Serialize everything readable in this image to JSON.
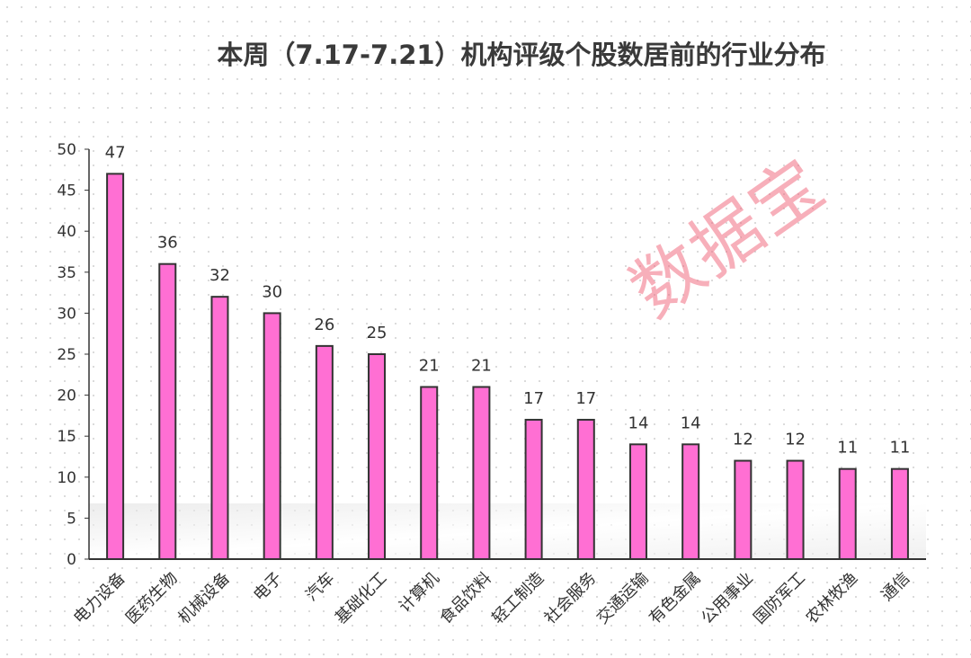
{
  "chart_data": {
    "type": "bar",
    "title": "本周（7.17-7.21）机构评级个股数居前的行业分布",
    "categories": [
      "电力设备",
      "医药生物",
      "机械设备",
      "电子",
      "汽车",
      "基础化工",
      "计算机",
      "食品饮料",
      "轻工制造",
      "社会服务",
      "交通运输",
      "有色金属",
      "公用事业",
      "国防军工",
      "农林牧渔",
      "通信"
    ],
    "values": [
      47,
      36,
      32,
      30,
      26,
      25,
      21,
      21,
      17,
      17,
      14,
      14,
      12,
      12,
      11,
      11
    ],
    "xlabel": "",
    "ylabel": "",
    "ylim": [
      0,
      50
    ],
    "yticks": [
      "0",
      "5",
      "10",
      "15",
      "20",
      "25",
      "30",
      "35",
      "40",
      "45",
      "50"
    ],
    "grid": false,
    "bar_color": "#ff6fd3",
    "bar_edge_color": "#333333",
    "data_labels": true
  },
  "watermark": "数据宝"
}
